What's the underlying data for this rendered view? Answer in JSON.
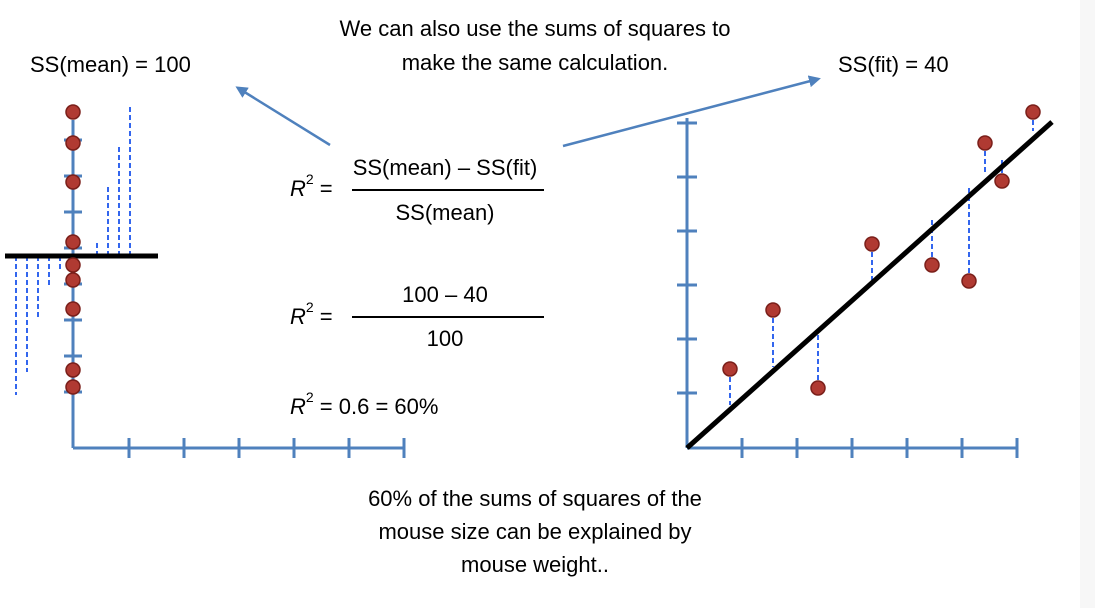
{
  "header": {
    "title_line1": "We can also use the sums of squares to",
    "title_line2": "make the same calculation."
  },
  "left_plot": {
    "label": "SS(mean) = 100",
    "x_ticks": 6,
    "y_ticks": 9
  },
  "right_plot": {
    "label": "SS(fit) = 40",
    "x_ticks": 6,
    "y_ticks": 7
  },
  "formula1": {
    "lhs_var": "R",
    "lhs_exp": "2",
    "lhs_eq": " =",
    "numerator": "SS(mean) – SS(fit)",
    "denominator": "SS(mean)"
  },
  "formula2": {
    "lhs_var": "R",
    "lhs_exp": "2",
    "lhs_eq": " =",
    "numerator": "100 – 40",
    "denominator": "100"
  },
  "formula3": {
    "lhs_var": "R",
    "lhs_exp": "2",
    "rhs": " = 0.6 = 60%"
  },
  "footer": {
    "line1": "60% of the sums of squares of the",
    "line2": "mouse size can be explained by",
    "line3": "mouse weight.."
  },
  "colors": {
    "axis": "#4f81bd",
    "residual": "#3366ee",
    "point_fill": "#b03a32",
    "point_stroke": "#7a1f1a",
    "fit_line": "#000000",
    "arrow": "#4f81bd"
  }
}
